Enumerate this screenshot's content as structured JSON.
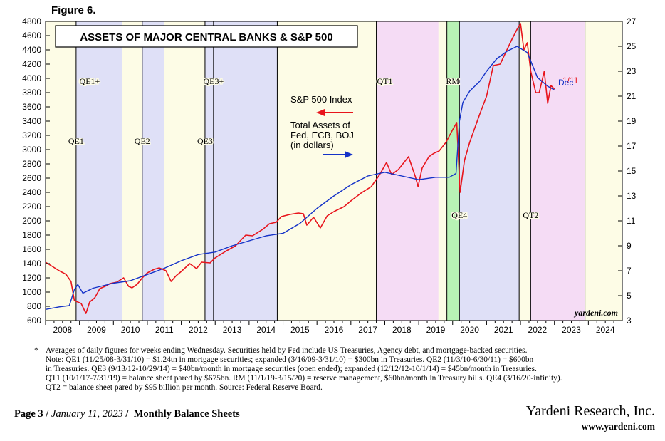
{
  "figure_label": "Figure 6.",
  "chart_data": {
    "type": "line",
    "title": "ASSETS OF MAJOR CENTRAL BANKS & S&P 500",
    "x_ticks": [
      "2008",
      "2009",
      "2010",
      "2011",
      "2012",
      "2013",
      "2014",
      "2015",
      "2016",
      "2017",
      "2018",
      "2019",
      "2020",
      "2021",
      "2022",
      "2023",
      "2024"
    ],
    "xlim": [
      2008.0,
      2025.0
    ],
    "y_left": {
      "ticks": [
        600,
        800,
        1000,
        1200,
        1400,
        1600,
        1800,
        2000,
        2200,
        2400,
        2600,
        2800,
        3000,
        3200,
        3400,
        3600,
        3800,
        4000,
        4200,
        4400,
        4600,
        4800
      ],
      "ylim": [
        600,
        4800
      ]
    },
    "y_right": {
      "ticks": [
        3,
        5,
        7,
        9,
        11,
        13,
        15,
        17,
        19,
        21,
        23,
        25,
        27
      ],
      "ylim": [
        3,
        27
      ]
    },
    "series": [
      {
        "name": "S&P 500 Index",
        "axis": "left",
        "color": "#e8141c",
        "x": [
          2008.0,
          2008.2,
          2008.4,
          2008.6,
          2008.75,
          2008.85,
          2008.95,
          2009.05,
          2009.19,
          2009.3,
          2009.45,
          2009.6,
          2009.75,
          2009.9,
          2010.1,
          2010.3,
          2010.45,
          2010.55,
          2010.7,
          2010.85,
          2011.0,
          2011.2,
          2011.35,
          2011.55,
          2011.7,
          2011.85,
          2012.0,
          2012.25,
          2012.45,
          2012.6,
          2012.85,
          2013.0,
          2013.3,
          2013.6,
          2013.9,
          2014.1,
          2014.4,
          2014.6,
          2014.8,
          2014.95,
          2015.2,
          2015.45,
          2015.6,
          2015.7,
          2015.9,
          2016.1,
          2016.3,
          2016.5,
          2016.8,
          2017.0,
          2017.3,
          2017.6,
          2017.85,
          2018.05,
          2018.2,
          2018.4,
          2018.7,
          2018.9,
          2018.98,
          2019.1,
          2019.3,
          2019.45,
          2019.6,
          2019.8,
          2020.0,
          2020.12,
          2020.22,
          2020.35,
          2020.5,
          2020.65,
          2020.8,
          2021.0,
          2021.2,
          2021.4,
          2021.6,
          2021.75,
          2021.9,
          2022.0,
          2022.1,
          2022.2,
          2022.3,
          2022.45,
          2022.55,
          2022.7,
          2022.8,
          2022.9,
          2023.0
        ],
        "values": [
          1420,
          1360,
          1300,
          1250,
          1150,
          880,
          860,
          840,
          700,
          860,
          920,
          1050,
          1080,
          1120,
          1140,
          1200,
          1080,
          1060,
          1110,
          1200,
          1270,
          1320,
          1340,
          1300,
          1150,
          1230,
          1290,
          1400,
          1330,
          1420,
          1410,
          1480,
          1570,
          1650,
          1800,
          1790,
          1880,
          1960,
          1980,
          2060,
          2090,
          2110,
          2100,
          1940,
          2050,
          1900,
          2070,
          2130,
          2200,
          2280,
          2390,
          2480,
          2650,
          2820,
          2650,
          2720,
          2900,
          2620,
          2480,
          2740,
          2900,
          2950,
          2980,
          3100,
          3280,
          3380,
          2400,
          2850,
          3100,
          3300,
          3500,
          3750,
          4180,
          4200,
          4400,
          4550,
          4690,
          4770,
          4400,
          4500,
          4100,
          3800,
          3800,
          4100,
          3650,
          3900,
          3850
        ]
      },
      {
        "name": "Total Assets of Fed, ECB, BOJ (in dollars)",
        "axis": "right",
        "color": "#1432c8",
        "x": [
          2008.0,
          2008.4,
          2008.7,
          2008.85,
          2008.95,
          2009.1,
          2009.4,
          2009.7,
          2010.0,
          2010.5,
          2011.0,
          2011.5,
          2012.0,
          2012.5,
          2013.0,
          2013.5,
          2014.0,
          2014.5,
          2015.0,
          2015.5,
          2016.0,
          2016.5,
          2017.0,
          2017.5,
          2018.0,
          2018.5,
          2019.0,
          2019.5,
          2019.9,
          2020.1,
          2020.2,
          2020.3,
          2020.5,
          2020.8,
          2021.0,
          2021.3,
          2021.6,
          2021.9,
          2022.2,
          2022.5,
          2022.8,
          2023.0
        ],
        "values": [
          3.9,
          4.1,
          4.2,
          5.5,
          5.9,
          5.2,
          5.6,
          5.8,
          6.0,
          6.2,
          6.7,
          7.2,
          7.8,
          8.3,
          8.5,
          9.0,
          9.4,
          9.8,
          10.0,
          10.8,
          12.0,
          13.0,
          13.9,
          14.6,
          14.9,
          14.6,
          14.3,
          14.5,
          14.5,
          14.8,
          19.0,
          20.5,
          21.4,
          22.2,
          23.0,
          24.0,
          24.6,
          25.0,
          24.5,
          22.5,
          21.8,
          21.5
        ]
      }
    ],
    "bands": [
      {
        "label": "QE1+",
        "start": 2008.9,
        "end": 2010.25,
        "color": "#dfe0f7"
      },
      {
        "label": "QE2",
        "start": 2010.85,
        "end": 2011.5,
        "color": "#dfe0f7"
      },
      {
        "label": "QE3+",
        "start": 2012.7,
        "end": 2014.83,
        "color": "#dfe0f7"
      },
      {
        "label": "QT1",
        "start": 2017.75,
        "end": 2019.58,
        "color": "#f5dcf5"
      },
      {
        "label": "RM",
        "start": 2019.83,
        "end": 2020.2,
        "color": "#b8f2b5"
      },
      {
        "label": "QE4",
        "start": 2020.2,
        "end": 2021.96,
        "color": "#dfe0f7"
      },
      {
        "label": "QT2",
        "start": 2022.3,
        "end": 2023.9,
        "color": "#f5dcf5"
      }
    ],
    "vlines": [
      2008.9,
      2010.85,
      2012.7,
      2012.95,
      2014.83,
      2017.75,
      2019.83,
      2020.2,
      2021.96,
      2022.3,
      2023.9
    ],
    "event_labels": [
      {
        "text": "QE1+",
        "x": 2009.3,
        "level": "upper"
      },
      {
        "text": "QE3+",
        "x": 2012.95,
        "level": "upper"
      },
      {
        "text": "QT1",
        "x": 2018.0,
        "level": "upper"
      },
      {
        "text": "RM",
        "x": 2020.0,
        "level": "upper"
      },
      {
        "text": "QE1",
        "x": 2008.9,
        "level": "middle"
      },
      {
        "text": "QE2",
        "x": 2010.85,
        "level": "middle"
      },
      {
        "text": "QE3",
        "x": 2012.7,
        "level": "middle"
      },
      {
        "text": "QE4",
        "x": 2020.2,
        "level": "lower"
      },
      {
        "text": "QT2",
        "x": 2022.3,
        "level": "lower"
      }
    ],
    "legend": [
      {
        "text": "S&P 500 Index",
        "color": "#e8141c",
        "arrow": "left"
      },
      {
        "text": "Total Assets of\nFed, ECB, BOJ\n(in dollars)",
        "color": "#1432c8",
        "arrow": "right"
      }
    ],
    "end_labels": [
      {
        "text": "1/11",
        "color": "#e8141c"
      },
      {
        "text": "Dec",
        "color": "#1432c8"
      }
    ],
    "watermark": "yardeni.com",
    "background": "#fdfce6"
  },
  "notes": [
    "Averages of daily figures for weeks ending Wednesday. Securities held by Fed include US Treasuries, Agency debt, and mortgage-backed securities.",
    "Note: QE1 (11/25/08-3/31/10) = $1.24tn in mortgage securities; expanded (3/16/09-3/31/10) = $300bn in Treasuries. QE2 (11/3/10-6/30/11) = $600bn",
    "in Treasuries. QE3 (9/13/12-10/29/14) = $40bn/month in mortgage securities (open ended); expanded (12/12/12-10/1/14) = $45bn/month in Treasuries.",
    "QT1 (10/1/17-7/31/19) = balance sheet pared by $675bn. RM (11/1/19-3/15/20) = reserve management, $60bn/month in Treasury bills. QE4 (3/16/20-infinity).",
    "QT2 = balance sheet pared by $95 billion per month. Source: Federal Reserve Board."
  ],
  "footer": {
    "page": "Page 3",
    "date": "January 11, 2023",
    "section": "Monthly Balance Sheets",
    "company": "Yardeni Research, Inc.",
    "url": "www.yardeni.com"
  }
}
